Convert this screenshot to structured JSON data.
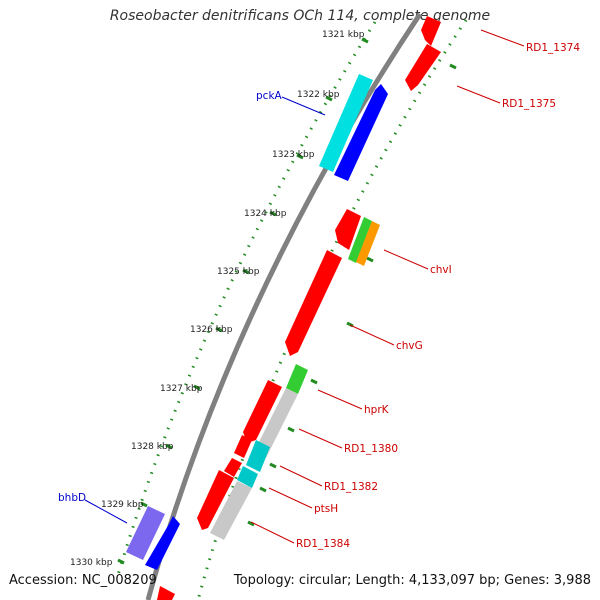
{
  "title": "Roseobacter denitrificans OCh 114, complete genome",
  "accession": "Accession: NC_008209",
  "topology": "Topology: circular; Length: 4,133,097 bp; Genes: 3,988",
  "colors": {
    "backbone": "#808080",
    "tick": "#228b22",
    "forward_gene": "#0000ff",
    "reverse_gene": "#ff0000",
    "label_forward": "#0000cc",
    "label_reverse": "#cc0000",
    "cyan": "#00e0e0",
    "green": "#33cc33",
    "orange": "#ff9900",
    "purple": "#7b68ee",
    "grey": "#c8c8c8"
  },
  "kbp_ticks": [
    "1321 kbp",
    "1322 kbp",
    "1323 kbp",
    "1324 kbp",
    "1325 kbp",
    "1326 kbp",
    "1327 kbp",
    "1328 kbp",
    "1329 kbp",
    "1330 kbp"
  ],
  "gene_labels": [
    {
      "text": "pckA",
      "strand": "forward"
    },
    {
      "text": "bhbD",
      "strand": "forward"
    },
    {
      "text": "RD1_1374",
      "strand": "reverse"
    },
    {
      "text": "RD1_1375",
      "strand": "reverse"
    },
    {
      "text": "chvI",
      "strand": "reverse"
    },
    {
      "text": "chvG",
      "strand": "reverse"
    },
    {
      "text": "hprK",
      "strand": "reverse"
    },
    {
      "text": "RD1_1380",
      "strand": "reverse"
    },
    {
      "text": "RD1_1382",
      "strand": "reverse"
    },
    {
      "text": "ptsH",
      "strand": "reverse"
    },
    {
      "text": "RD1_1384",
      "strand": "reverse"
    }
  ]
}
